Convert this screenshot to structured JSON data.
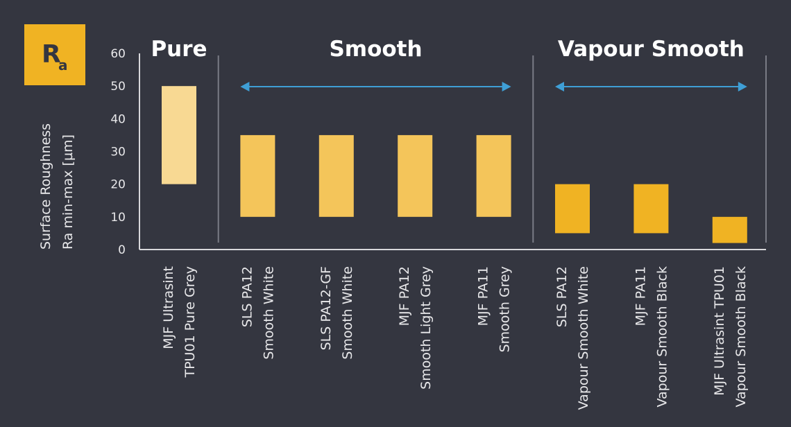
{
  "badge": {
    "main": "R",
    "sub": "a",
    "color": "#f0b323"
  },
  "chart_data": {
    "type": "bar",
    "subtype": "floating-range",
    "ylabel": [
      "Surface Roughness",
      "Ra min-max [µm]"
    ],
    "ylim": [
      0,
      60
    ],
    "yticks": [
      0,
      10,
      20,
      30,
      40,
      50,
      60
    ],
    "grid": false,
    "groups": [
      {
        "label": "Pure",
        "start": 0,
        "end": 0,
        "arrow": false
      },
      {
        "label": "Smooth",
        "start": 1,
        "end": 4,
        "arrow": true
      },
      {
        "label": "Vapour Smooth",
        "start": 5,
        "end": 7,
        "arrow": true
      }
    ],
    "categories": [
      [
        "MJF Ultrasint",
        "TPU01 Pure Grey"
      ],
      [
        "SLS PA12",
        "Smooth White"
      ],
      [
        "SLS PA12-GF",
        "Smooth White"
      ],
      [
        "MJF PA12",
        "Smooth Light Grey"
      ],
      [
        "MJF PA11",
        "Smooth Grey"
      ],
      [
        "SLS PA12",
        "Vapour Smooth White"
      ],
      [
        "MJF PA11",
        "Vapour Smooth Black"
      ],
      [
        "MJF Ultrasint TPU01",
        "Vapour Smooth Black"
      ]
    ],
    "min": [
      20,
      10,
      10,
      10,
      10,
      5,
      5,
      2
    ],
    "max": [
      50,
      35,
      35,
      35,
      35,
      20,
      20,
      10
    ],
    "colors": [
      "#f8d993",
      "#f4c55a",
      "#f4c55a",
      "#f4c55a",
      "#f4c55a",
      "#f0b323",
      "#f0b323",
      "#f0b323"
    ],
    "arrow_color": "#3f9fd6"
  }
}
